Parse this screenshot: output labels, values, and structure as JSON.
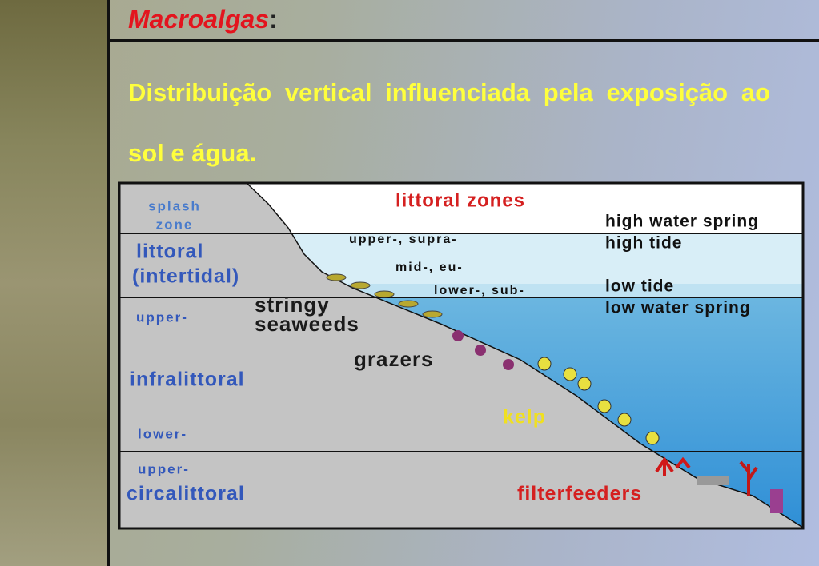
{
  "slide": {
    "title": "Macroalgas",
    "title_punctuation": ":",
    "body": "Distribuição vertical influenciada pela exposição ao sol e água."
  },
  "diagram": {
    "title": "littoral zones",
    "splash_zone": [
      "splash",
      "zone"
    ],
    "littoral": [
      "littoral",
      "(intertidal)"
    ],
    "littoral_subzones": [
      "upper-, supra-",
      "mid-, eu-",
      "lower-, sub-"
    ],
    "tide_levels": [
      "high water spring",
      "high tide",
      "low tide",
      "low water spring"
    ],
    "infralittoral_upper": "upper-",
    "infralittoral": "infralittoral",
    "infralittoral_lower": "lower-",
    "circalittoral_upper": "upper-",
    "circalittoral": "circalittoral",
    "organisms": {
      "stringy_seaweeds": [
        "stringy",
        "seaweeds"
      ],
      "grazers": "grazers",
      "kelp": "kelp",
      "filterfeeders": "filterfeeders"
    }
  }
}
